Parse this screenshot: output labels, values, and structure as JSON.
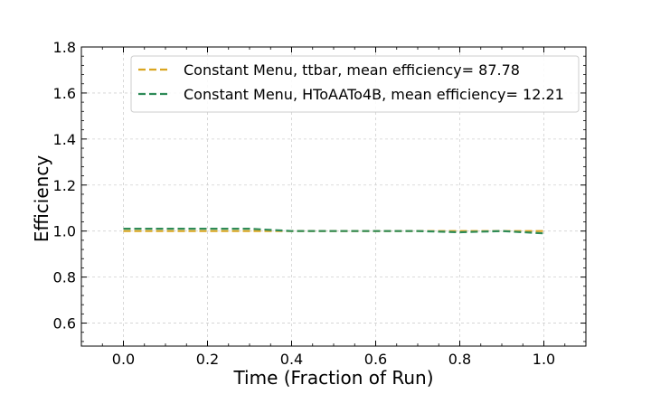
{
  "chart_data": {
    "type": "line",
    "title": "",
    "xlabel": "Time (Fraction of Run)",
    "ylabel": "Efficiency",
    "xlim": [
      -0.1,
      1.1
    ],
    "ylim": [
      0.5,
      1.8
    ],
    "xticks": [
      0.0,
      0.2,
      0.4,
      0.6,
      0.8,
      1.0
    ],
    "xtick_labels": [
      "0.0",
      "0.2",
      "0.4",
      "0.6",
      "0.8",
      "1.0"
    ],
    "yticks": [
      0.6,
      0.8,
      1.0,
      1.2,
      1.4,
      1.6,
      1.8
    ],
    "ytick_labels": [
      "0.6",
      "0.8",
      "1.0",
      "1.2",
      "1.4",
      "1.6",
      "1.8"
    ],
    "grid": true,
    "legend_position": "top-right",
    "series": [
      {
        "name": "Constant Menu, ttbar, mean efficiency= 87.78",
        "color": "#DAA520",
        "style": "dashed",
        "x": [
          0.0,
          0.1,
          0.2,
          0.3,
          0.4,
          0.5,
          0.6,
          0.7,
          0.8,
          0.9,
          1.0
        ],
        "y": [
          1.0,
          1.0,
          1.0,
          1.0,
          1.0,
          1.0,
          1.0,
          1.0,
          1.0,
          1.0,
          1.0
        ]
      },
      {
        "name": "Constant Menu, HToAATo4B, mean efficiency= 12.21",
        "color": "#2E8B57",
        "style": "dashed",
        "x": [
          0.0,
          0.1,
          0.2,
          0.3,
          0.4,
          0.5,
          0.6,
          0.7,
          0.8,
          0.9,
          1.0
        ],
        "y": [
          1.01,
          1.01,
          1.01,
          1.01,
          1.0,
          1.0,
          1.0,
          1.0,
          0.995,
          1.0,
          0.99
        ]
      }
    ]
  }
}
